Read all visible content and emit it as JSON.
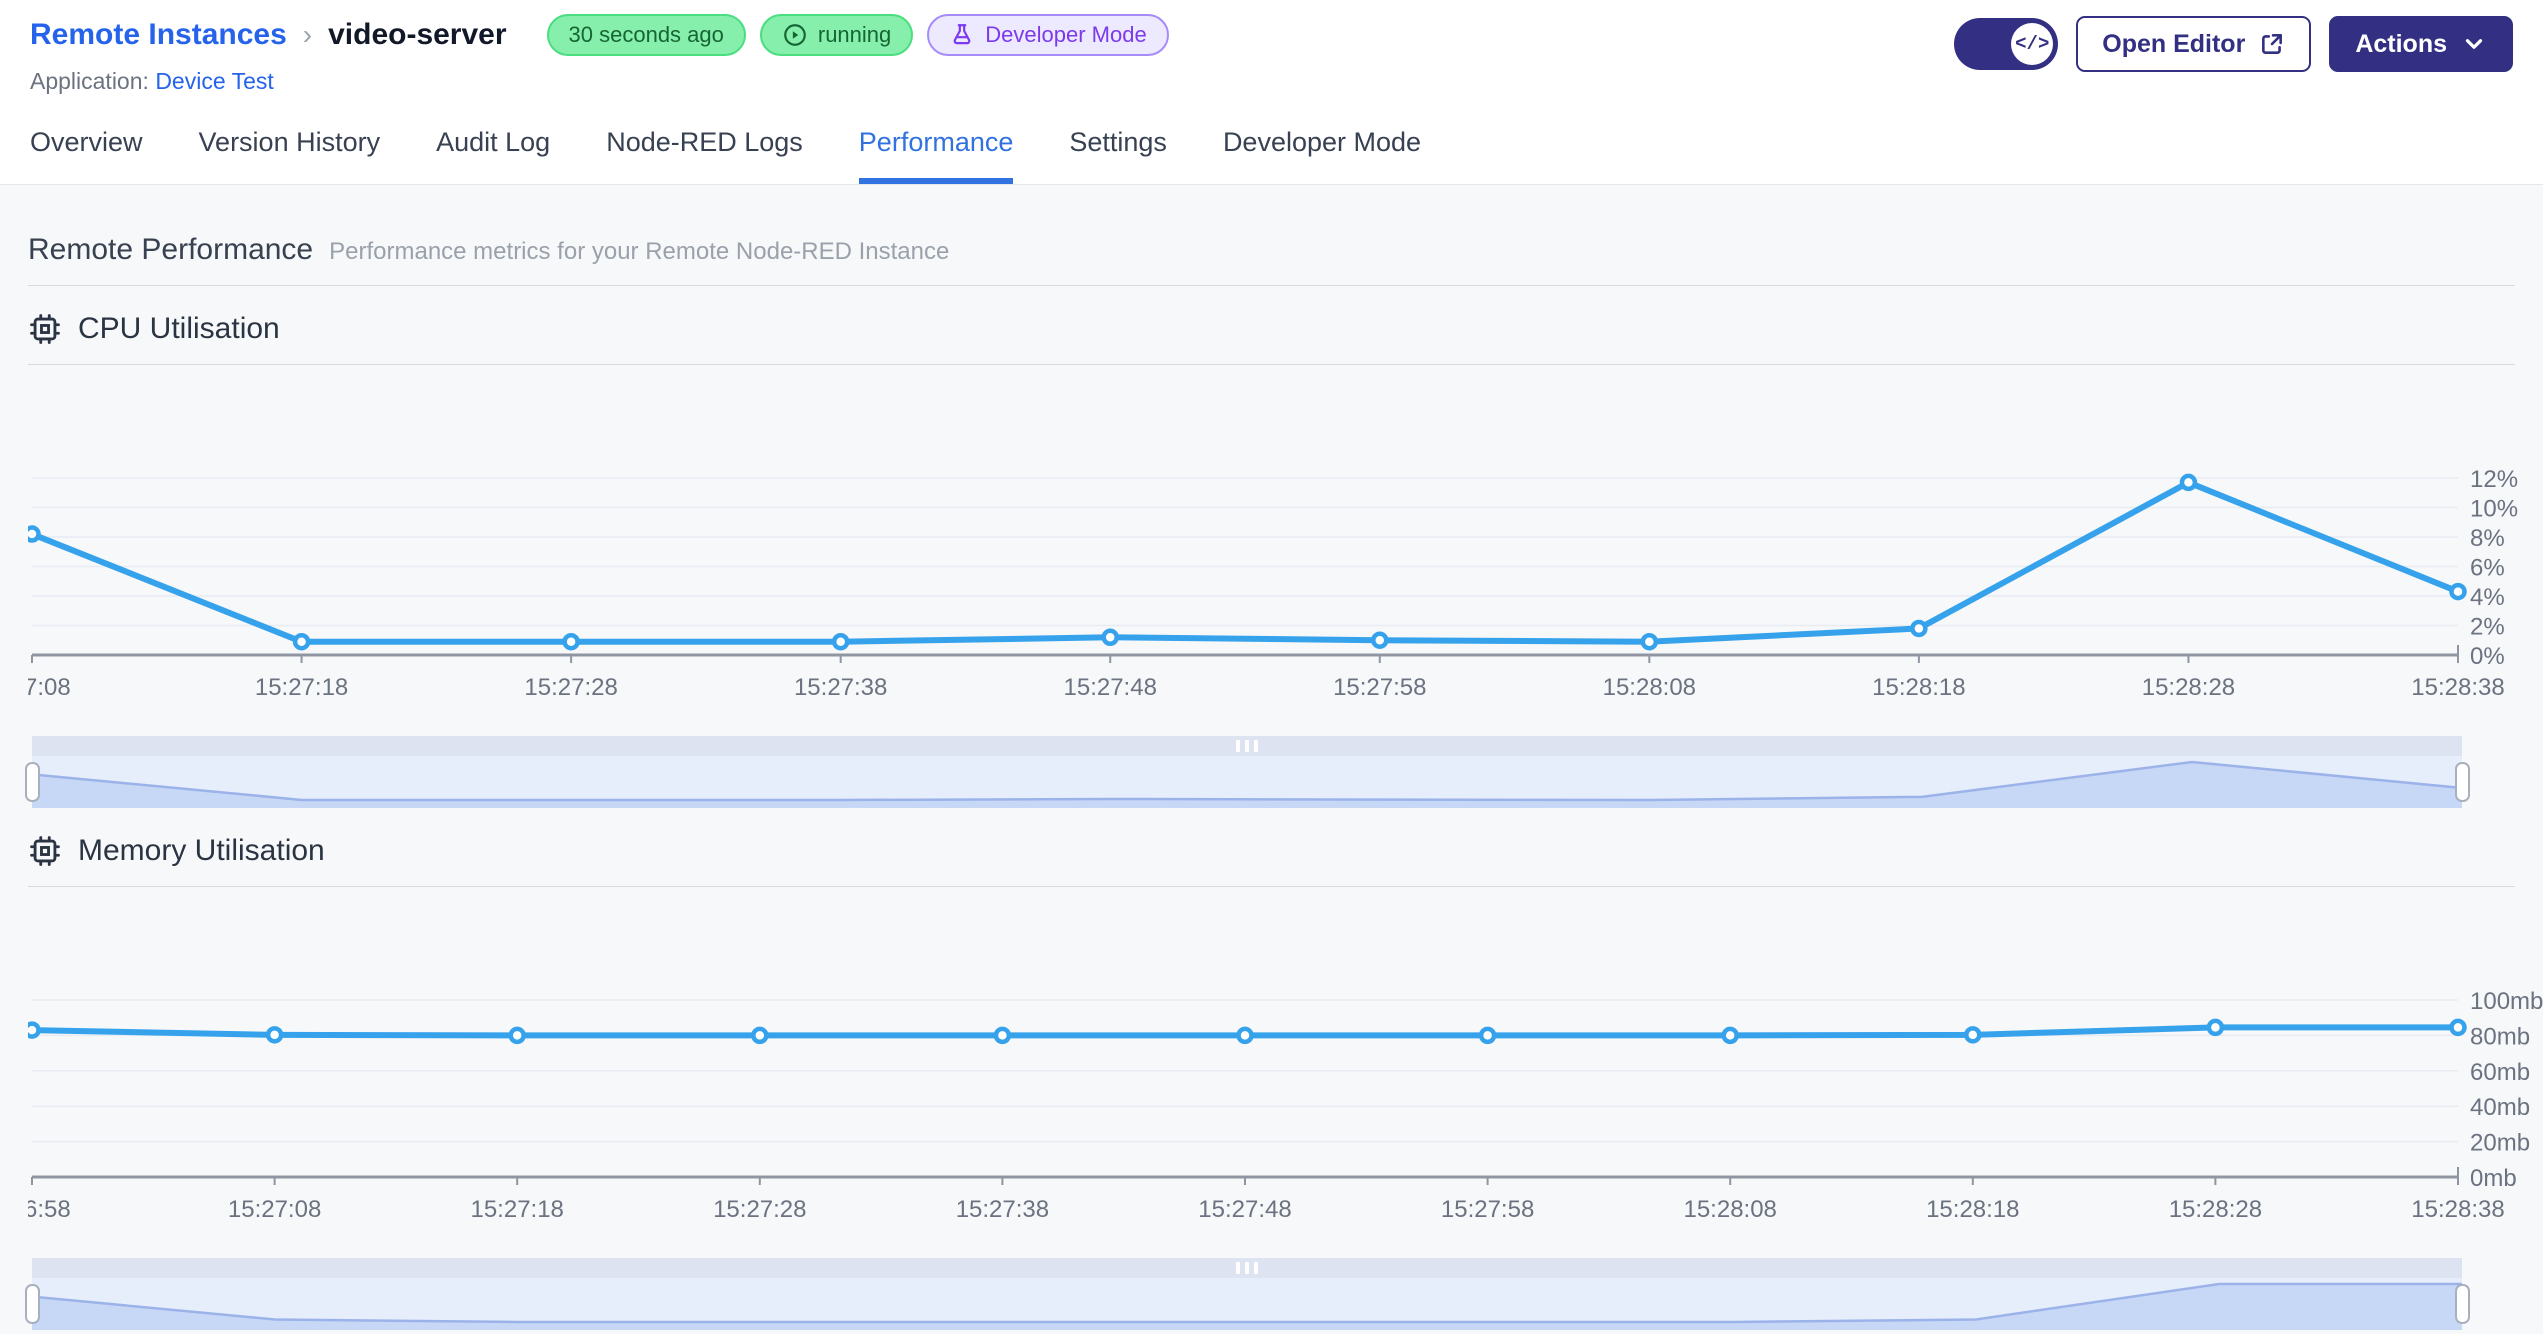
{
  "header": {
    "breadcrumb": {
      "root": "Remote Instances",
      "separator": "›",
      "current": "video-server"
    },
    "badges": [
      {
        "label": "30 seconds ago"
      },
      {
        "label": "running",
        "icon": "play-circle-icon"
      },
      {
        "label": "Developer Mode",
        "icon": "flask-icon"
      }
    ],
    "application": {
      "label": "Application:",
      "name": "Device Test"
    },
    "toggle_icon": "</>",
    "open_editor_label": "Open Editor",
    "actions_label": "Actions"
  },
  "tabs": [
    {
      "label": "Overview",
      "active": false
    },
    {
      "label": "Version History",
      "active": false
    },
    {
      "label": "Audit Log",
      "active": false
    },
    {
      "label": "Node-RED Logs",
      "active": false
    },
    {
      "label": "Performance",
      "active": true
    },
    {
      "label": "Settings",
      "active": false
    },
    {
      "label": "Developer Mode",
      "active": false
    }
  ],
  "page": {
    "title": "Remote Performance",
    "subtitle": "Performance metrics for your Remote Node-RED Instance"
  },
  "chart_data": [
    {
      "id": "cpu",
      "type": "line",
      "title": "CPU Utilisation",
      "x": [
        "7:08",
        "15:27:18",
        "15:27:28",
        "15:27:38",
        "15:27:48",
        "15:27:58",
        "15:28:08",
        "15:28:18",
        "15:28:28",
        "15:28:38"
      ],
      "values": [
        8.2,
        0.9,
        0.9,
        0.9,
        1.2,
        1.0,
        0.9,
        1.8,
        11.7,
        4.3
      ],
      "ylabels": [
        "0%",
        "2%",
        "4%",
        "6%",
        "8%",
        "10%",
        "12%"
      ],
      "ymax": 12,
      "ytick_step": 2,
      "unit": "%",
      "ylim": [
        0,
        12
      ],
      "grid": true,
      "legend": "none",
      "line_color": "#36a2eb"
    },
    {
      "id": "memory",
      "type": "line",
      "title": "Memory Utilisation",
      "x": [
        "6:58",
        "15:27:08",
        "15:27:18",
        "15:27:28",
        "15:27:38",
        "15:27:48",
        "15:27:58",
        "15:28:08",
        "15:28:18",
        "15:28:28",
        "15:28:38"
      ],
      "values": [
        83,
        80.3,
        80,
        80,
        80,
        80,
        80,
        80,
        80.3,
        84.5,
        84.5
      ],
      "ylabels": [
        "0mb",
        "20mb",
        "40mb",
        "60mb",
        "80mb",
        "100mb"
      ],
      "ymax": 100,
      "ytick_step": 20,
      "unit": "mb",
      "ylim": [
        0,
        100
      ],
      "grid": true,
      "legend": "none",
      "line_color": "#36a2eb"
    }
  ],
  "colors": {
    "accent_blue": "#2563eb",
    "tab_active": "#3172e0",
    "indigo_button": "#333083",
    "chart_line": "#36a2eb",
    "grid_line": "#e7ebf2",
    "axis_line": "#8f96a2",
    "tick_text": "#6b7280",
    "badge_green_bg": "#86efac",
    "badge_green_border": "#4ade80",
    "badge_green_text": "#166534",
    "badge_purple_bg": "#ede9fe",
    "badge_purple_border": "#a78bfa",
    "badge_purple_text": "#7c3aed",
    "brush_strip": "#dde3f1",
    "brush_bg": "#e6edfb",
    "brush_fill": "#c7d7f6",
    "brush_line": "#9cb3ea"
  }
}
